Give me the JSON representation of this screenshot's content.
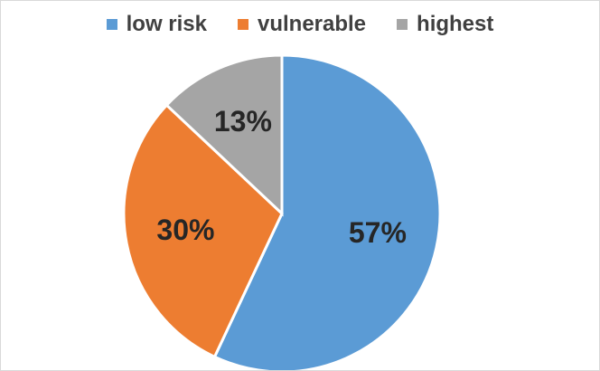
{
  "chart_data": {
    "type": "pie",
    "title": "",
    "legend_position": "top",
    "slices": [
      {
        "name": "low risk",
        "value": 57,
        "label": "57%",
        "color": "#5B9BD5"
      },
      {
        "name": "vulnerable",
        "value": 30,
        "label": "30%",
        "color": "#ED7D31"
      },
      {
        "name": "highest",
        "value": 13,
        "label": "13%",
        "color": "#A5A5A5"
      }
    ]
  }
}
